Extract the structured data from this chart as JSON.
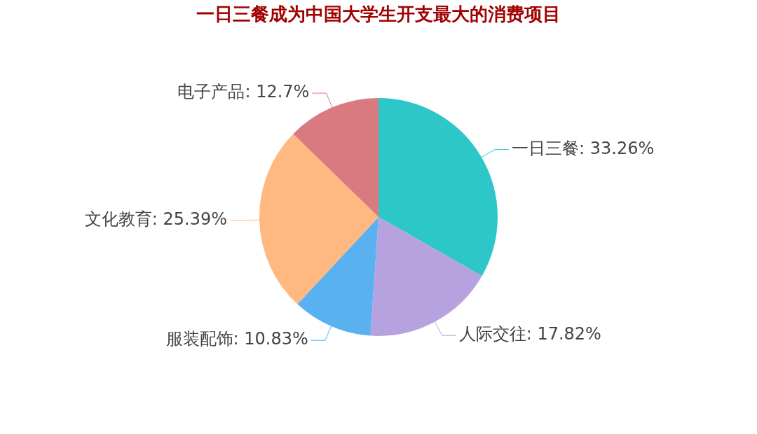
{
  "chart_data": {
    "type": "pie",
    "title": "一日三餐成为中国大学生开支最大的消费项目",
    "categories": [
      "一日三餐",
      "人际交往",
      "服装配饰",
      "文化教育",
      "电子产品"
    ],
    "values": [
      33.26,
      17.82,
      10.83,
      25.39,
      12.7
    ],
    "colors": [
      "#2ec7c9",
      "#b6a2de",
      "#5ab1ef",
      "#ffb980",
      "#d87a80"
    ],
    "value_labels": [
      ": 33.26%",
      ": 17.82%",
      ": 10.83%",
      ": 25.39%",
      ": 12.7%"
    ]
  }
}
